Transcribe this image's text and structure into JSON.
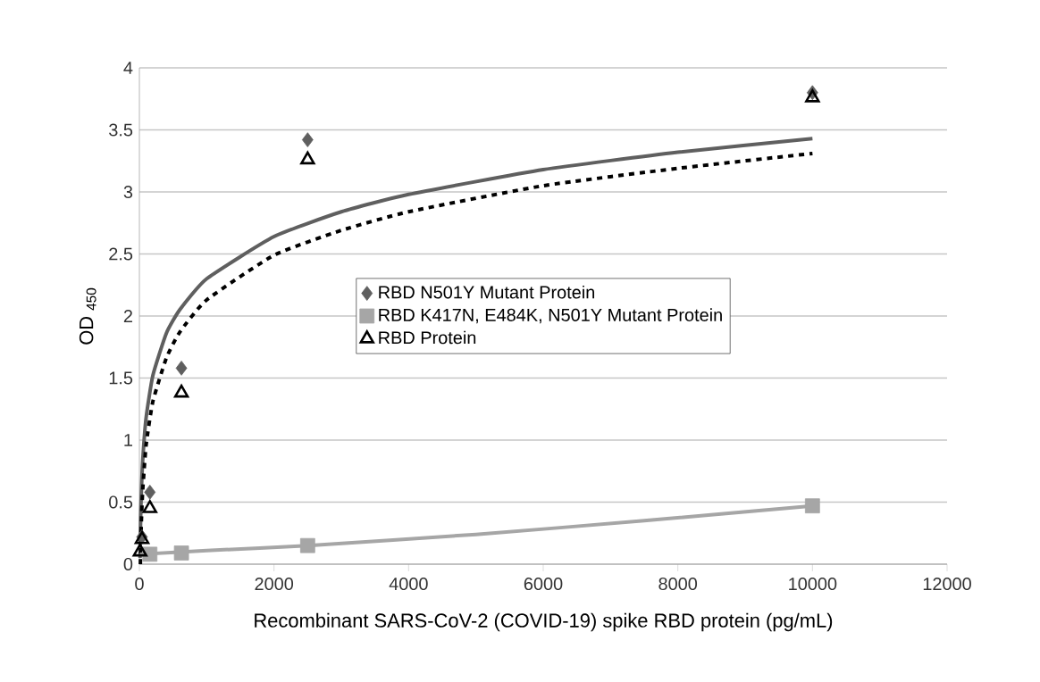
{
  "chart_data": {
    "type": "scatter",
    "xlabel": "Recombinant SARS-CoV-2 (COVID-19) spike RBD protein (pg/mL)",
    "ylabel": "OD $_{450}$",
    "xlim": [
      0,
      12000
    ],
    "ylim": [
      0,
      4
    ],
    "xticks": [
      0,
      2000,
      4000,
      6000,
      8000,
      10000,
      12000
    ],
    "yticks": [
      0,
      0.5,
      1,
      1.5,
      2,
      2.5,
      3,
      3.5,
      4
    ],
    "grid": "y",
    "legend": "center",
    "series": [
      {
        "name": "RBD N501Y Mutant Protein",
        "color": "#5f5f5f",
        "marker": "diamond",
        "x": [
          39,
          156,
          625,
          2500,
          10000
        ],
        "values": [
          0.22,
          0.58,
          1.58,
          3.42,
          3.8
        ]
      },
      {
        "name": "RBD K417N, E484K, N501Y Mutant Protein",
        "color": "#a6a6a6",
        "marker": "square",
        "x": [
          156,
          625,
          2500,
          10000
        ],
        "values": [
          0.08,
          0.09,
          0.15,
          0.47
        ]
      },
      {
        "name": "RBD Protein",
        "color": "#000000",
        "marker": "triangle",
        "x": [
          10,
          39,
          156,
          625,
          2500,
          10000
        ],
        "values": [
          0.1,
          0.2,
          0.45,
          1.38,
          3.26,
          3.76
        ]
      },
      {
        "type": "line",
        "color": "#5f5f5f",
        "line_style": "solid",
        "x": [
          10,
          20,
          30,
          50,
          100,
          200,
          400,
          600,
          1000,
          2000,
          3000,
          4000,
          6000,
          8000,
          10000
        ],
        "values": [
          0.05,
          0.4,
          0.59,
          0.84,
          1.18,
          1.52,
          1.86,
          2.05,
          2.3,
          2.64,
          2.84,
          2.98,
          3.18,
          3.32,
          3.43
        ]
      },
      {
        "type": "line",
        "color": "#000000",
        "line_style": "dashed",
        "x": [
          15,
          20,
          30,
          50,
          100,
          200,
          400,
          600,
          1000,
          2000,
          3000,
          4000,
          6000,
          8000,
          10000
        ],
        "values": [
          0.0,
          0.15,
          0.35,
          0.6,
          0.96,
          1.31,
          1.66,
          1.87,
          2.13,
          2.49,
          2.69,
          2.84,
          3.05,
          3.19,
          3.31
        ]
      },
      {
        "type": "line",
        "color": "#a6a6a6",
        "line_style": "solid",
        "x": [
          10,
          1000,
          2500,
          5000,
          7500,
          10000
        ],
        "values": [
          0.08,
          0.11,
          0.15,
          0.24,
          0.35,
          0.47
        ]
      }
    ]
  }
}
